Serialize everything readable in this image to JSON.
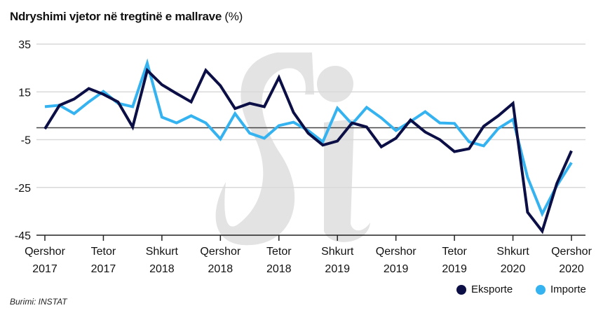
{
  "title": {
    "main": "Ndryshimi vjetor në tregtinë e mallrave",
    "unit": "(%)"
  },
  "source": "Burimi: INSTAT",
  "colors": {
    "eksporte": "#0b0f45",
    "importe": "#35b3f0",
    "grid": "#d9d9d9",
    "zero": "#444444",
    "watermark": "#e3e3e3"
  },
  "chart_data": {
    "type": "line",
    "title": "Ndryshimi vjetor në tregtinë e mallrave (%)",
    "xlabel": "",
    "ylabel": "",
    "ylim": [
      -45,
      35
    ],
    "yticks": [
      35,
      15,
      -5,
      -25,
      -45
    ],
    "x_tick_labels": [
      {
        "month": "Qershor",
        "year": "2017",
        "index": 0
      },
      {
        "month": "Tetor",
        "year": "2017",
        "index": 4
      },
      {
        "month": "Shkurt",
        "year": "2018",
        "index": 8
      },
      {
        "month": "Qershor",
        "year": "2018",
        "index": 12
      },
      {
        "month": "Tetor",
        "year": "2018",
        "index": 16
      },
      {
        "month": "Shkurt",
        "year": "2019",
        "index": 20
      },
      {
        "month": "Qershor",
        "year": "2019",
        "index": 24
      },
      {
        "month": "Tetor",
        "year": "2019",
        "index": 28
      },
      {
        "month": "Shkurt",
        "year": "2020",
        "index": 32
      },
      {
        "month": "Qershor",
        "year": "2020",
        "index": 36
      }
    ],
    "grid": true,
    "legend_position": "bottom-right",
    "series": [
      {
        "name": "Eksporte",
        "color": "#0b0f45",
        "values": [
          -0.5,
          9.4,
          12,
          16.4,
          14,
          10.8,
          0.3,
          24,
          18,
          14.3,
          10.8,
          24,
          17.6,
          8,
          10.2,
          8.8,
          21,
          6.4,
          -2.3,
          -7.3,
          -5.6,
          2,
          0.3,
          -8,
          -4.4,
          3.2,
          -1.8,
          -5,
          -10,
          -8.8,
          0.6,
          5,
          10.2,
          -35.4,
          -43.3,
          -23.4,
          -9.7
        ]
      },
      {
        "name": "Importe",
        "color": "#35b3f0",
        "values": [
          8.8,
          9.4,
          5.9,
          10.8,
          15.2,
          10.2,
          8.8,
          27,
          4.4,
          2,
          5,
          2,
          -4.7,
          5.9,
          -2.3,
          -4.4,
          0.9,
          2.3,
          -1.2,
          -5.9,
          8.2,
          1.5,
          8.5,
          4.1,
          -1.2,
          2.6,
          6.7,
          2,
          1.8,
          -5.9,
          -7.6,
          -0.3,
          3.5,
          -20.8,
          -36,
          -24.3,
          -14.6
        ]
      }
    ]
  }
}
